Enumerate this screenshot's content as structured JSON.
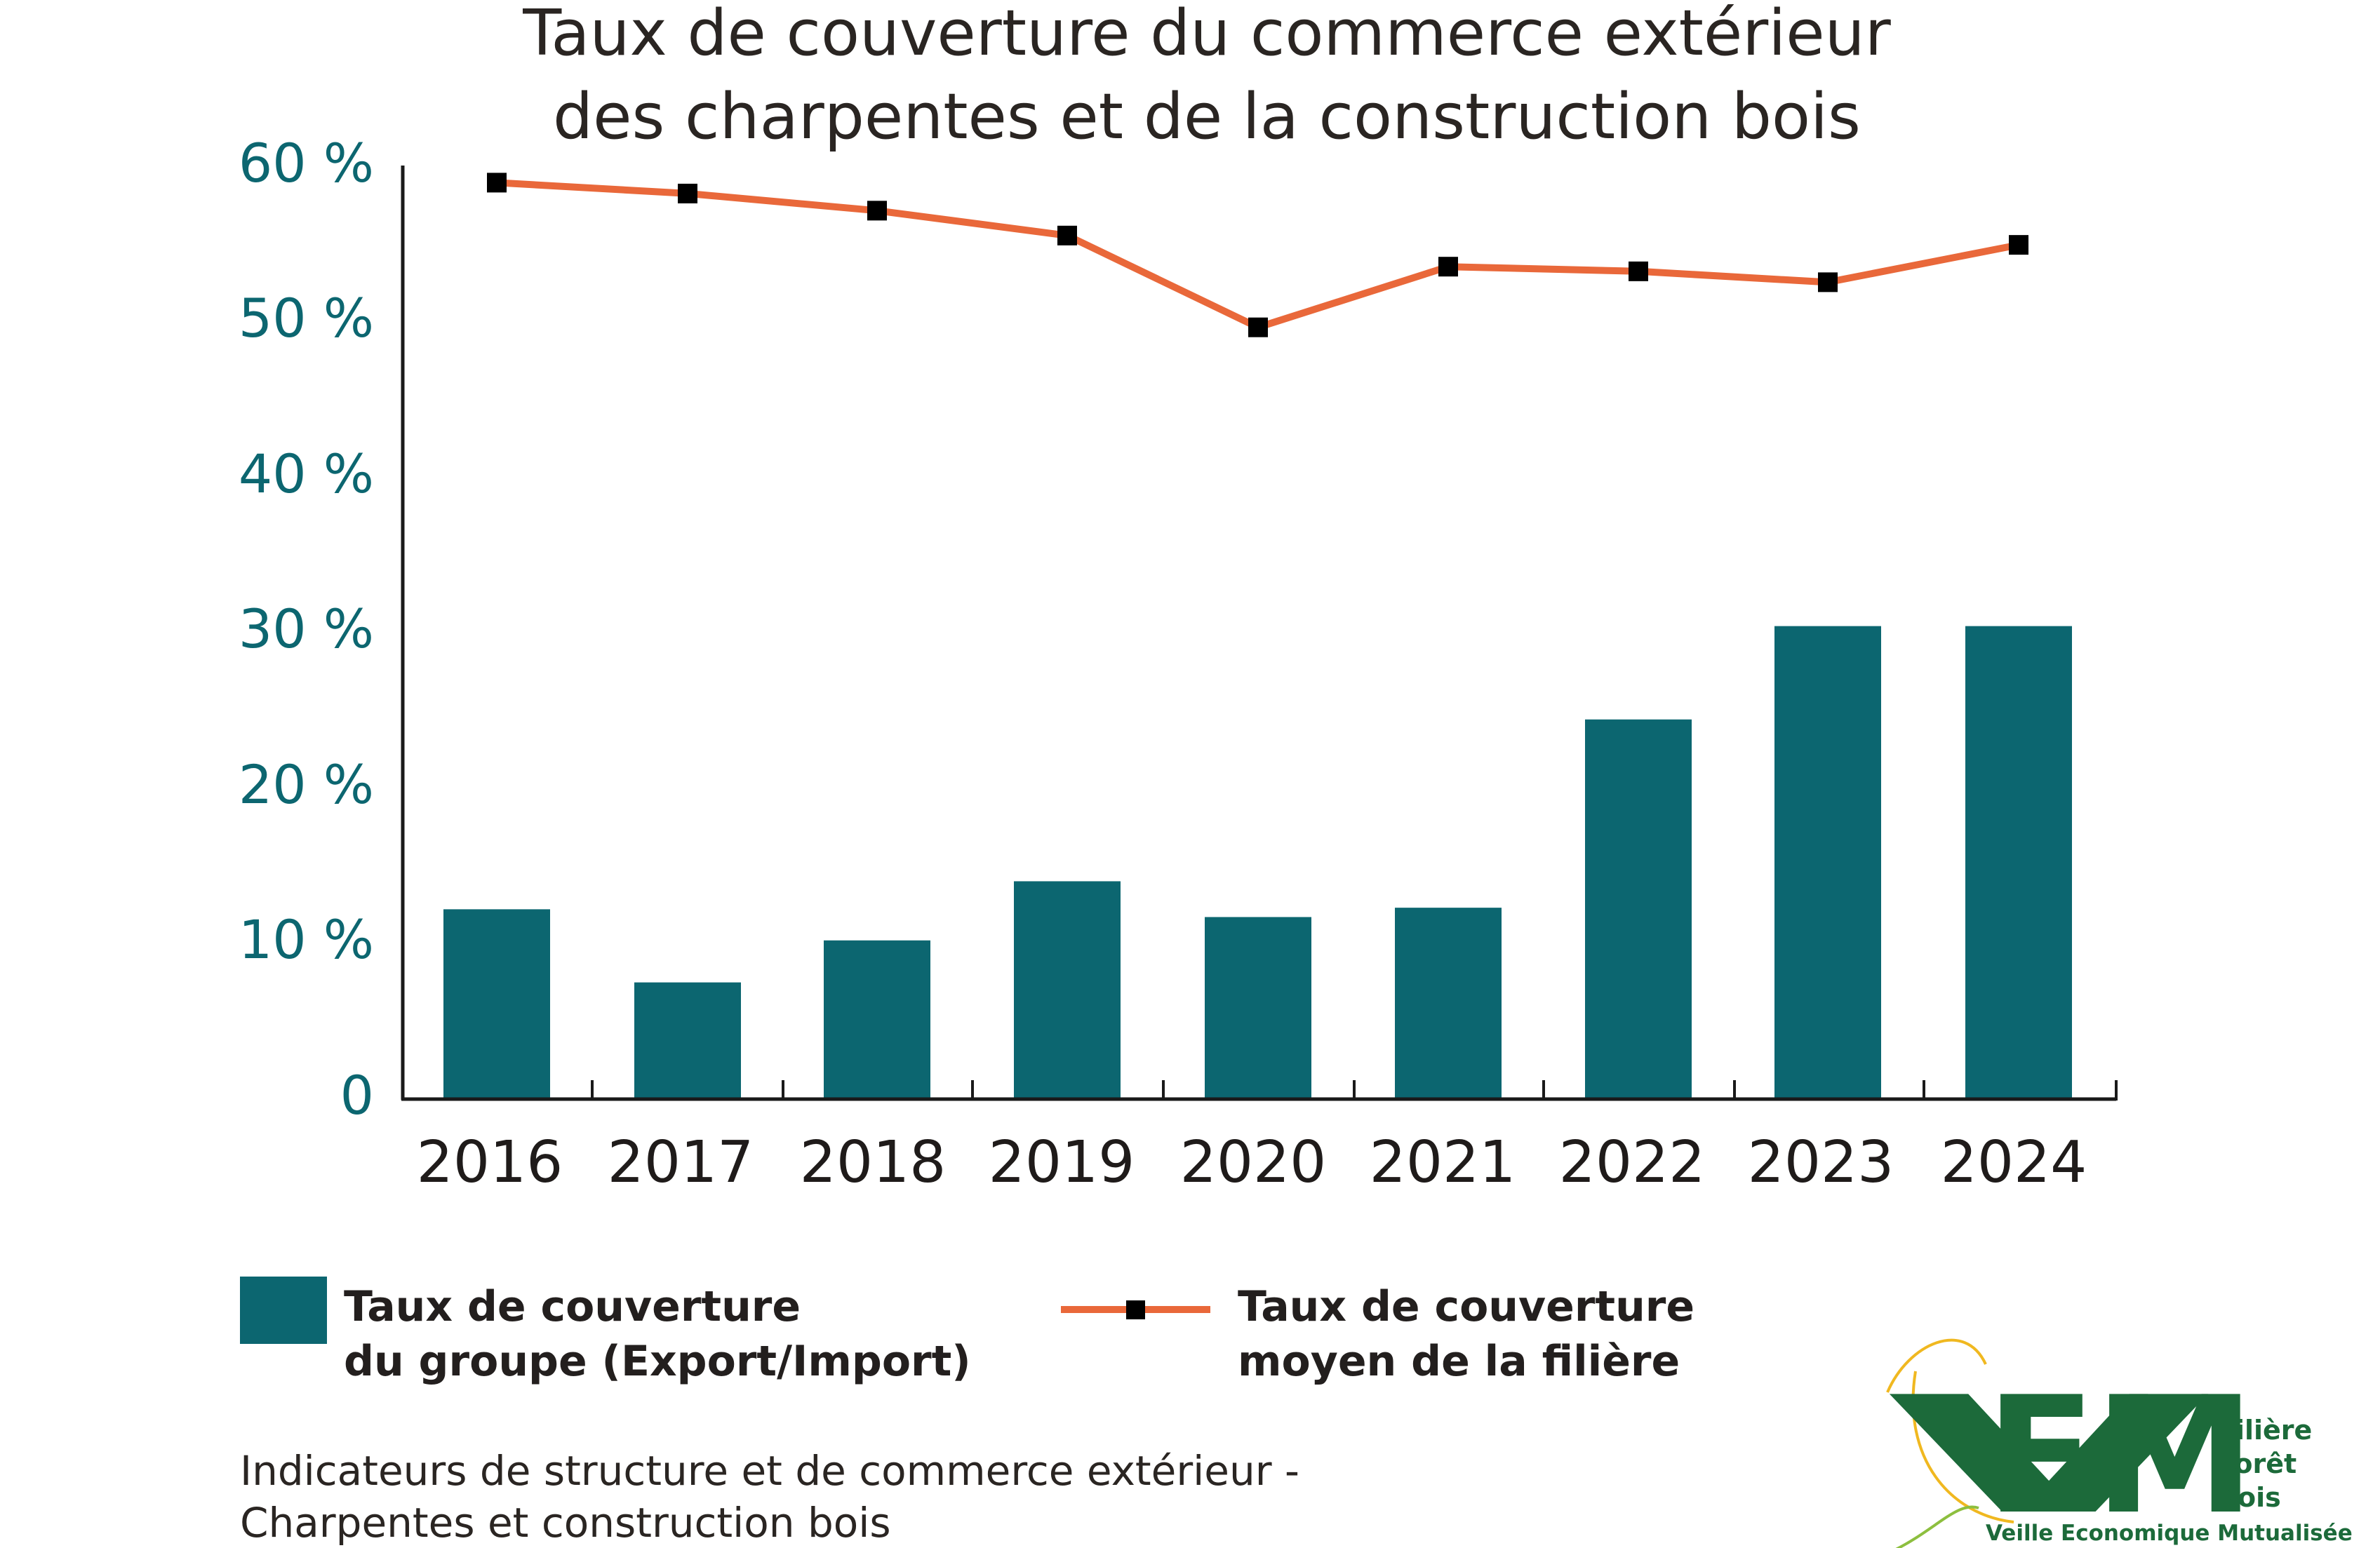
{
  "chart_data": {
    "type": "bar",
    "title_lines": [
      "Taux de couverture du commerce extérieur",
      "des charpentes et de la construction bois"
    ],
    "categories": [
      "2016",
      "2017",
      "2018",
      "2019",
      "2020",
      "2021",
      "2022",
      "2023",
      "2024"
    ],
    "ytick_labels": [
      "0",
      "10 %",
      "20 %",
      "30 %",
      "40 %",
      "50 %",
      "60 %"
    ],
    "ylim": [
      0,
      60
    ],
    "grid": false,
    "legend_position": "bottom",
    "series": [
      {
        "type": "bar",
        "legend_lines": [
          "Taux de couverture",
          "du groupe (Export/Import)"
        ],
        "color": "#0c6670",
        "values": [
          12.2,
          7.5,
          10.2,
          14.0,
          11.7,
          12.3,
          24.4,
          30.4,
          30.4
        ]
      },
      {
        "type": "line",
        "legend_lines": [
          "Taux de couverture",
          "moyen de la filière"
        ],
        "color": "#e9683a",
        "marker_color": "#000000",
        "values": [
          58.9,
          58.2,
          57.1,
          55.5,
          49.6,
          53.5,
          53.2,
          52.5,
          54.9
        ]
      }
    ],
    "footnote_lines": [
      "Indicateurs de structure et de commerce extérieur -",
      "Charpentes et construction bois"
    ]
  },
  "logo": {
    "letters": [
      "V",
      "E",
      "M"
    ],
    "side_lines": [
      "Filière",
      "Forêt",
      "Bois"
    ],
    "tagline": "Veille Economique Mutualisée",
    "color": "#1c6a3a",
    "arc_colors": [
      "#f0b820",
      "#8dbf3f"
    ]
  }
}
